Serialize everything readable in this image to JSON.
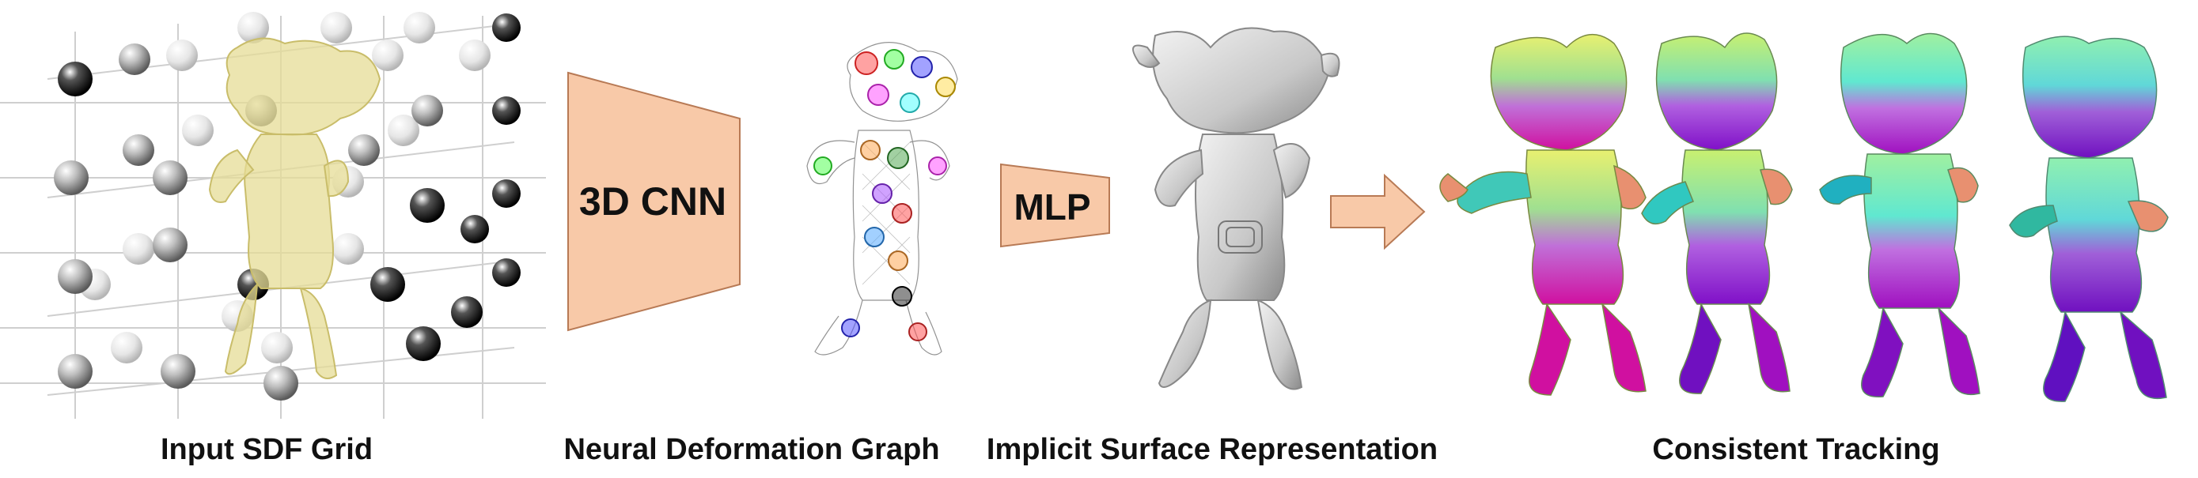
{
  "diagram": {
    "blocks": {
      "cnn": "3D CNN",
      "mlp": "MLP"
    },
    "captions": {
      "input": "Input SDF Grid",
      "graph": "Neural Deformation Graph",
      "implicit": "Implicit Surface Representation",
      "tracking": "Consistent Tracking"
    }
  },
  "colors": {
    "block_fill": "#f8c9a8",
    "block_stroke": "#b87a55",
    "mesh_yellow": "#e8e0a0",
    "surface_gray": "#cfcfcf"
  }
}
